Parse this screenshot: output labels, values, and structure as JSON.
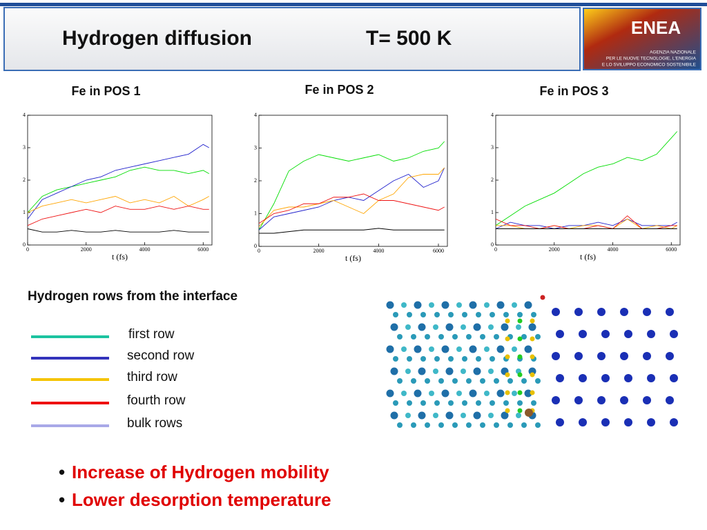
{
  "header": {
    "title": "Hydrogen diffusion",
    "subtitle": "T= 500 K"
  },
  "logo": {
    "name": "ENEA",
    "lines": [
      "AGENZIA NAZIONALE",
      "PER LE NUOVE TECNOLOGIE, L'ENERGIA",
      "E LO SVILUPPO ECONOMICO SOSTENIBILE"
    ]
  },
  "chart_data": [
    {
      "type": "line",
      "title": "Fe in POS 1",
      "xlabel": "t (fs)",
      "x": [
        0,
        500,
        1000,
        1500,
        2000,
        2500,
        3000,
        3500,
        4000,
        4500,
        5000,
        5500,
        6000,
        6200
      ],
      "xlim": [
        0,
        6300
      ],
      "ylim": [
        0,
        4
      ],
      "xticks": [
        0,
        2000,
        4000,
        6000
      ],
      "yticks": [
        0,
        1,
        2,
        3,
        4
      ],
      "series": [
        {
          "color": "#00dd00",
          "values": [
            1.0,
            1.5,
            1.7,
            1.8,
            1.9,
            2.0,
            2.1,
            2.3,
            2.4,
            2.3,
            2.3,
            2.2,
            2.3,
            2.2
          ]
        },
        {
          "color": "#2020cc",
          "values": [
            0.8,
            1.4,
            1.6,
            1.8,
            2.0,
            2.1,
            2.3,
            2.4,
            2.5,
            2.6,
            2.7,
            2.8,
            3.1,
            3.0
          ]
        },
        {
          "color": "#ffa500",
          "values": [
            1.0,
            1.2,
            1.3,
            1.4,
            1.3,
            1.4,
            1.5,
            1.3,
            1.4,
            1.3,
            1.5,
            1.2,
            1.4,
            1.5
          ]
        },
        {
          "color": "#ee1111",
          "values": [
            0.6,
            0.8,
            0.9,
            1.0,
            1.1,
            1.0,
            1.2,
            1.1,
            1.1,
            1.2,
            1.1,
            1.2,
            1.1,
            1.1
          ]
        },
        {
          "color": "#000000",
          "values": [
            0.5,
            0.4,
            0.4,
            0.45,
            0.4,
            0.4,
            0.45,
            0.4,
            0.4,
            0.4,
            0.45,
            0.4,
            0.4,
            0.4
          ]
        }
      ]
    },
    {
      "type": "line",
      "title": "Fe in POS 2",
      "xlabel": "t (fs)",
      "x": [
        0,
        500,
        1000,
        1500,
        2000,
        2500,
        3000,
        3500,
        4000,
        4500,
        5000,
        5500,
        6000,
        6200
      ],
      "xlim": [
        0,
        6300
      ],
      "ylim": [
        0,
        4
      ],
      "xticks": [
        0,
        2000,
        4000,
        6000
      ],
      "yticks": [
        0,
        1,
        2,
        3,
        4
      ],
      "series": [
        {
          "color": "#00dd00",
          "values": [
            0.5,
            1.3,
            2.3,
            2.6,
            2.8,
            2.7,
            2.6,
            2.7,
            2.8,
            2.6,
            2.7,
            2.9,
            3.0,
            3.2
          ]
        },
        {
          "color": "#2020cc",
          "values": [
            0.5,
            0.9,
            1.0,
            1.1,
            1.2,
            1.4,
            1.5,
            1.4,
            1.7,
            2.0,
            2.2,
            1.8,
            2.0,
            2.4
          ]
        },
        {
          "color": "#ffa500",
          "values": [
            0.6,
            1.1,
            1.2,
            1.2,
            1.3,
            1.4,
            1.2,
            1.0,
            1.4,
            1.6,
            2.1,
            2.2,
            2.2,
            2.4
          ]
        },
        {
          "color": "#ee1111",
          "values": [
            0.7,
            1.0,
            1.1,
            1.3,
            1.3,
            1.5,
            1.5,
            1.6,
            1.4,
            1.4,
            1.3,
            1.2,
            1.1,
            1.2
          ]
        },
        {
          "color": "#000000",
          "values": [
            0.4,
            0.4,
            0.45,
            0.5,
            0.5,
            0.5,
            0.5,
            0.5,
            0.55,
            0.5,
            0.5,
            0.5,
            0.5,
            0.5
          ]
        }
      ]
    },
    {
      "type": "line",
      "title": "Fe in POS 3",
      "xlabel": "t (fs)",
      "x": [
        0,
        500,
        1000,
        1500,
        2000,
        2500,
        3000,
        3500,
        4000,
        4500,
        5000,
        5500,
        6000,
        6200
      ],
      "xlim": [
        0,
        6300
      ],
      "ylim": [
        0,
        4
      ],
      "xticks": [
        0,
        2000,
        4000,
        6000
      ],
      "yticks": [
        0,
        1,
        2,
        3,
        4
      ],
      "series": [
        {
          "color": "#00dd00",
          "values": [
            0.6,
            0.9,
            1.2,
            1.4,
            1.6,
            1.9,
            2.2,
            2.4,
            2.5,
            2.7,
            2.6,
            2.8,
            3.3,
            3.5
          ]
        },
        {
          "color": "#2020cc",
          "values": [
            0.5,
            0.7,
            0.6,
            0.6,
            0.5,
            0.6,
            0.6,
            0.7,
            0.6,
            0.8,
            0.6,
            0.6,
            0.6,
            0.7
          ]
        },
        {
          "color": "#ffa500",
          "values": [
            0.6,
            0.6,
            0.5,
            0.5,
            0.6,
            0.5,
            0.6,
            0.6,
            0.5,
            0.8,
            0.5,
            0.6,
            0.5,
            0.6
          ]
        },
        {
          "color": "#ee1111",
          "values": [
            0.8,
            0.6,
            0.6,
            0.5,
            0.6,
            0.5,
            0.5,
            0.6,
            0.5,
            0.9,
            0.5,
            0.5,
            0.6,
            0.6
          ]
        },
        {
          "color": "#000000",
          "values": [
            0.5,
            0.5,
            0.5,
            0.5,
            0.5,
            0.5,
            0.5,
            0.5,
            0.5,
            0.5,
            0.5,
            0.5,
            0.5,
            0.5
          ]
        }
      ]
    }
  ],
  "legend": {
    "title": "Hydrogen rows from the interface",
    "items": [
      {
        "label": "first row",
        "color": "#1cc3a0"
      },
      {
        "label": "second row",
        "color": "#3333bb"
      },
      {
        "label": "third row",
        "color": "#f5c400"
      },
      {
        "label": "fourth row",
        "color": "#ee1111"
      },
      {
        "label": "bulk rows",
        "color": "#a8a8e8"
      }
    ]
  },
  "bullets": [
    "Increase of Hydrogen mobility",
    "Lower desorption temperature"
  ]
}
